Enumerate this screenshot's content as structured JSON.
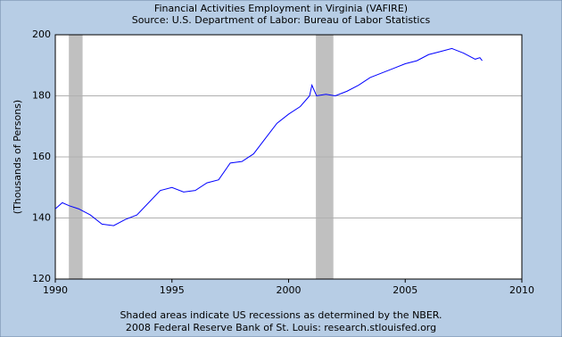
{
  "chart_data": {
    "type": "line",
    "title": "Financial Activities Employment in Virginia (VAFIRE)",
    "subtitle": "Source: U.S. Department of Labor: Bureau of Labor Statistics",
    "y_label": "(Thousands of Persons)",
    "notes": [
      "Shaded areas indicate US recessions as determined by the NBER.",
      "2008 Federal Reserve Bank of St. Louis: research.stlouisfed.org"
    ],
    "x": [
      1990.0,
      1990.3,
      1990.6,
      1991.0,
      1991.5,
      1992.0,
      1992.5,
      1993.0,
      1993.5,
      1994.0,
      1994.5,
      1995.0,
      1995.5,
      1996.0,
      1996.5,
      1997.0,
      1997.5,
      1998.0,
      1998.5,
      1999.0,
      1999.5,
      2000.0,
      2000.5,
      2000.9,
      2001.0,
      2001.2,
      2001.6,
      2002.0,
      2002.5,
      2003.0,
      2003.5,
      2004.0,
      2004.5,
      2005.0,
      2005.5,
      2006.0,
      2006.5,
      2007.0,
      2007.5,
      2008.0,
      2008.2,
      2008.3
    ],
    "series": [
      {
        "color": "#0000ff",
        "values": [
          143,
          145,
          144,
          143,
          141,
          138,
          137.5,
          139.5,
          141,
          145,
          149,
          150,
          148.5,
          149,
          151.5,
          152.5,
          158,
          158.5,
          161,
          166,
          171,
          174,
          176.5,
          180,
          183.5,
          180,
          180.5,
          180,
          181.5,
          183.5,
          186,
          187.5,
          189,
          190.5,
          191.5,
          193.5,
          194.5,
          195.5,
          194,
          192,
          192.5,
          191.5
        ]
      }
    ],
    "recessions": [
      [
        1990.58,
        1991.17
      ],
      [
        2001.17,
        2001.92
      ]
    ],
    "recession_color": "#c0c0c0",
    "xlim": [
      1990,
      2010
    ],
    "xticks": [
      1990,
      1995,
      2000,
      2005,
      2010
    ],
    "ylim": [
      120,
      200
    ],
    "yticks": [
      120,
      140,
      160,
      180,
      200
    ],
    "grid": true
  }
}
